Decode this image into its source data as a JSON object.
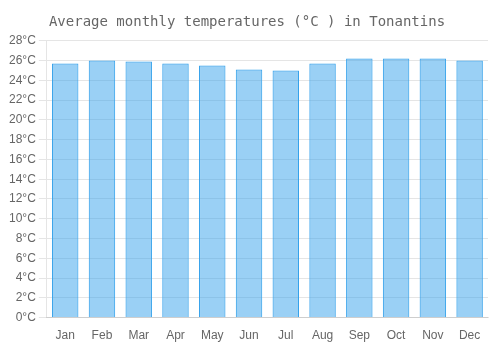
{
  "chart_data": {
    "type": "bar",
    "title": "Average monthly temperatures (°C ) in Tonantins",
    "categories": [
      "Jan",
      "Feb",
      "Mar",
      "Apr",
      "May",
      "Jun",
      "Jul",
      "Aug",
      "Sep",
      "Oct",
      "Nov",
      "Dec"
    ],
    "values": [
      25.7,
      26.0,
      25.9,
      25.7,
      25.5,
      25.1,
      25.0,
      25.7,
      26.2,
      26.2,
      26.2,
      26.0
    ],
    "ylim": [
      0,
      28
    ],
    "yticks": [
      {
        "value": 0,
        "label": "0°C"
      },
      {
        "value": 2,
        "label": "2°C"
      },
      {
        "value": 4,
        "label": "4°C"
      },
      {
        "value": 6,
        "label": "6°C"
      },
      {
        "value": 8,
        "label": "8°C"
      },
      {
        "value": 10,
        "label": "10°C"
      },
      {
        "value": 12,
        "label": "12°C"
      },
      {
        "value": 14,
        "label": "14°C"
      },
      {
        "value": 16,
        "label": "16°C"
      },
      {
        "value": 18,
        "label": "18°C"
      },
      {
        "value": 20,
        "label": "20°C"
      },
      {
        "value": 22,
        "label": "22°C"
      },
      {
        "value": 24,
        "label": "24°C"
      },
      {
        "value": 26,
        "label": "26°C"
      },
      {
        "value": 28,
        "label": "28°C"
      }
    ],
    "grid": true
  }
}
